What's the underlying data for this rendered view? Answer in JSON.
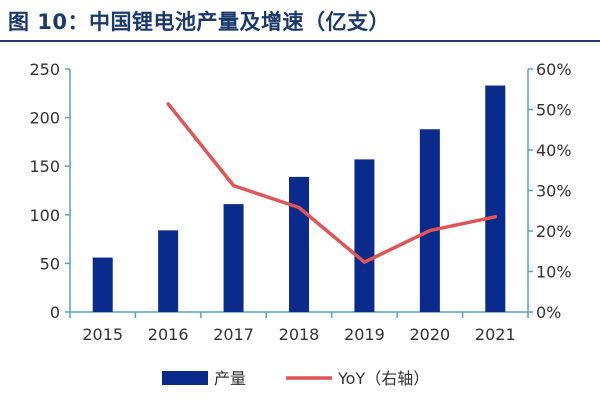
{
  "header": {
    "title": "图 10：中国锂电池产量及增速（亿支）"
  },
  "chart_data": {
    "type": "bar",
    "categories": [
      "2015",
      "2016",
      "2017",
      "2018",
      "2019",
      "2020",
      "2021"
    ],
    "series": [
      {
        "name": "产量",
        "type": "bar",
        "axis": "left",
        "values": [
          56,
          84,
          111,
          139,
          157,
          188,
          233
        ],
        "color": "#0a2a8c"
      },
      {
        "name": "YoY（右轴）",
        "type": "line",
        "axis": "right",
        "values": [
          null,
          51.4,
          31.2,
          25.8,
          12.3,
          20.1,
          23.5
        ],
        "color": "#e05555"
      }
    ],
    "y_left": {
      "ticks": [
        "0",
        "50",
        "100",
        "150",
        "200",
        "250"
      ],
      "min": 0,
      "max": 250
    },
    "y_right": {
      "ticks": [
        "0%",
        "10%",
        "20%",
        "30%",
        "40%",
        "50%",
        "60%"
      ],
      "min": 0,
      "max": 60
    },
    "axis_color": "#5aa0c8",
    "grid": false,
    "legend_position": "bottom"
  }
}
